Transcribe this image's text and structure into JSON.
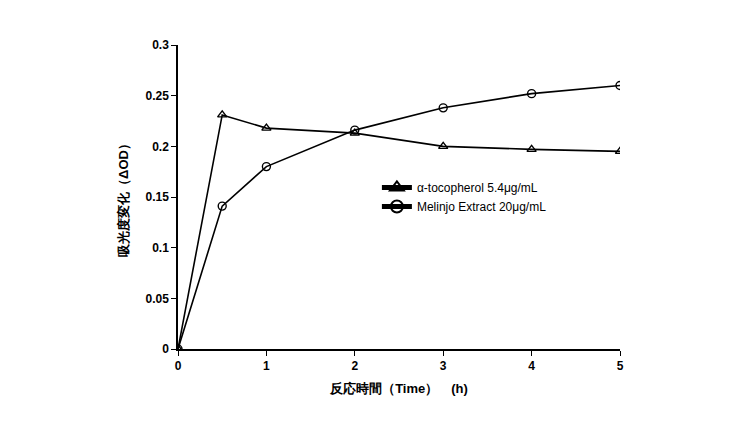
{
  "chart_data": {
    "type": "line",
    "x_label": "反応時間（Time）　(h)",
    "y_label": "吸光度変化（ΔOD）",
    "x": [
      0,
      0.5,
      1,
      2,
      3,
      4,
      5
    ],
    "series": [
      {
        "name": "α-tocopherol 5.4μg/mL",
        "color": "#000000",
        "marker": "triangle",
        "values": [
          0,
          0.231,
          0.218,
          0.213,
          0.2,
          0.197,
          0.195
        ]
      },
      {
        "name": "Melinjo Extract 20μg/mL",
        "color": "#000000",
        "marker": "circle",
        "values": [
          0,
          0.141,
          0.18,
          0.216,
          0.238,
          0.252,
          0.26
        ]
      }
    ],
    "xlim": [
      0,
      5
    ],
    "xticks": [
      0,
      1,
      2,
      3,
      4,
      5
    ],
    "ylim": [
      0,
      0.3
    ],
    "yticks": [
      0,
      0.05,
      0.1,
      0.15,
      0.2,
      0.25,
      0.3
    ],
    "grid": false,
    "legend": "right"
  }
}
